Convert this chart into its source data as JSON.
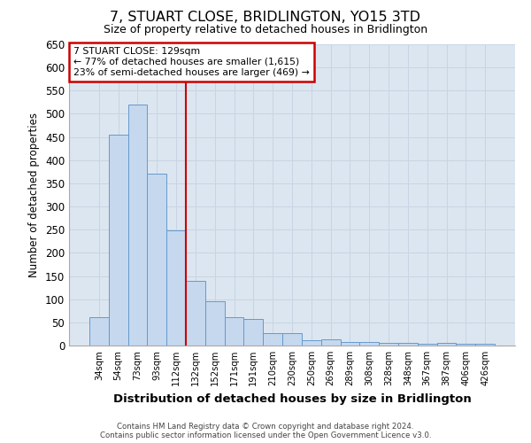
{
  "title": "7, STUART CLOSE, BRIDLINGTON, YO15 3TD",
  "subtitle": "Size of property relative to detached houses in Bridlington",
  "xlabel": "Distribution of detached houses by size in Bridlington",
  "ylabel": "Number of detached properties",
  "footer_line1": "Contains HM Land Registry data © Crown copyright and database right 2024.",
  "footer_line2": "Contains public sector information licensed under the Open Government Licence v3.0.",
  "categories": [
    "34sqm",
    "54sqm",
    "73sqm",
    "93sqm",
    "112sqm",
    "132sqm",
    "152sqm",
    "171sqm",
    "191sqm",
    "210sqm",
    "230sqm",
    "250sqm",
    "269sqm",
    "289sqm",
    "308sqm",
    "328sqm",
    "348sqm",
    "367sqm",
    "387sqm",
    "406sqm",
    "426sqm"
  ],
  "values": [
    62,
    455,
    520,
    370,
    248,
    140,
    95,
    62,
    58,
    26,
    26,
    11,
    13,
    7,
    7,
    5,
    5,
    3,
    5,
    4,
    3
  ],
  "bar_color": "#c5d8ee",
  "bar_edge_color": "#6699cc",
  "bar_edge_width": 0.7,
  "grid_color": "#c8d4e4",
  "background_color": "#dce6f0",
  "property_line_x": 5.0,
  "annotation_text_line1": "7 STUART CLOSE: 129sqm",
  "annotation_text_line2": "← 77% of detached houses are smaller (1,615)",
  "annotation_text_line3": "23% of semi-detached houses are larger (469) →",
  "annotation_box_color": "#ffffff",
  "annotation_box_edge_color": "#cc0000",
  "property_line_color": "#cc0000",
  "ylim": [
    0,
    650
  ],
  "yticks": [
    0,
    50,
    100,
    150,
    200,
    250,
    300,
    350,
    400,
    450,
    500,
    550,
    600,
    650
  ]
}
